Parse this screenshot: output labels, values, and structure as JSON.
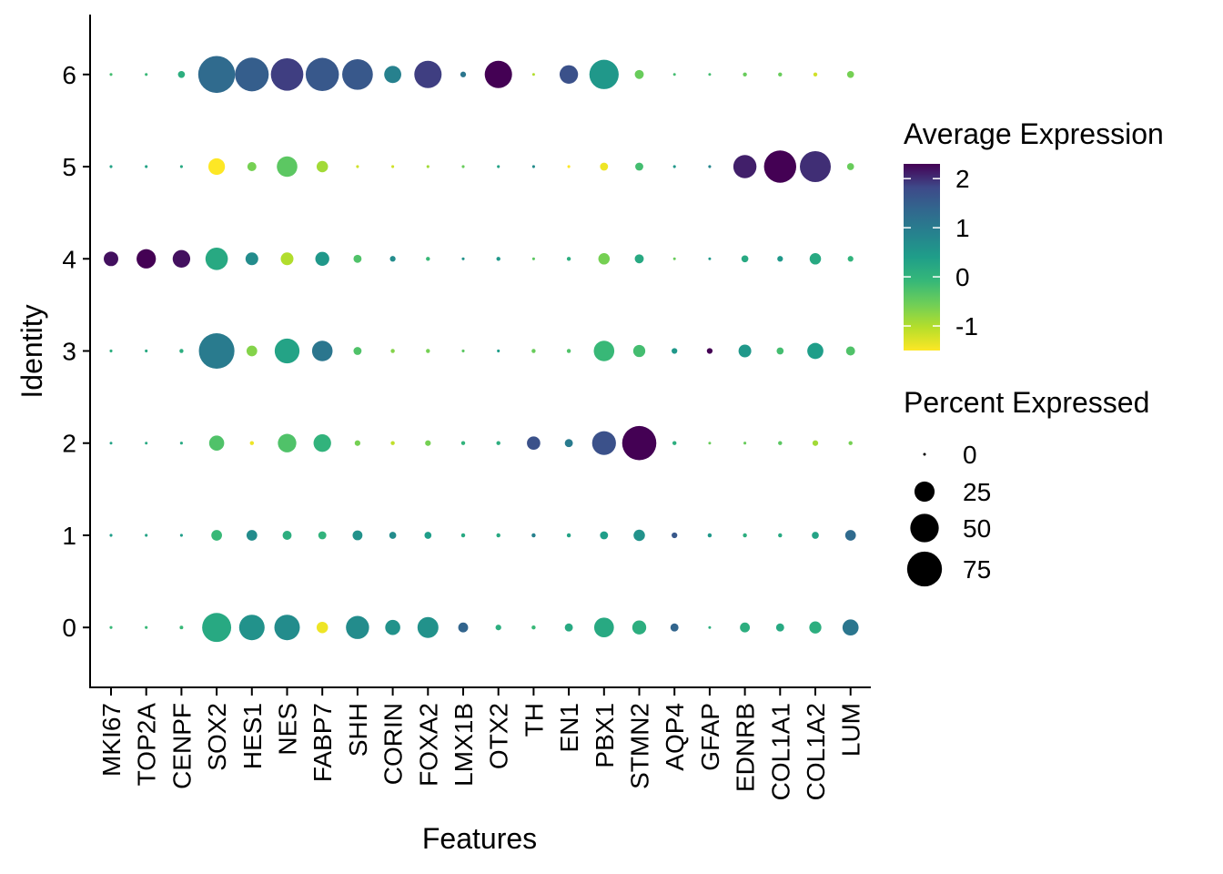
{
  "chart_data": {
    "type": "dotplot",
    "title": "",
    "xlabel": "Features",
    "ylabel": "Identity",
    "features": [
      "MKI67",
      "TOP2A",
      "CENPF",
      "SOX2",
      "HES1",
      "NES",
      "FABP7",
      "SHH",
      "CORIN",
      "FOXA2",
      "LMX1B",
      "OTX2",
      "TH",
      "EN1",
      "PBX1",
      "STMN2",
      "AQP4",
      "GFAP",
      "EDNRB",
      "COL1A1",
      "COL1A2",
      "LUM"
    ],
    "identities": [
      "0",
      "1",
      "2",
      "3",
      "4",
      "5",
      "6"
    ],
    "ylim": [
      -0.65,
      6.65
    ],
    "grid": false,
    "colorbar": {
      "title": "Average Expression",
      "range": [
        -1.5,
        2.3
      ],
      "ticks": [
        2,
        1,
        0,
        -1
      ],
      "tick_labels": [
        "2",
        "1",
        "0",
        "-1"
      ],
      "palette": "viridis (reversed: high = dark purple)"
    },
    "size_legend": {
      "title": "Percent Expressed",
      "values": [
        0,
        25,
        50,
        75
      ],
      "labels": [
        "0",
        "25",
        "50",
        "75"
      ],
      "max_value": 90
    },
    "legend_placement": "right",
    "series": [
      {
        "identity": "0",
        "avg_exp": [
          -0.1,
          -0.1,
          -0.1,
          0.2,
          0.6,
          0.7,
          -1.4,
          0.7,
          0.6,
          0.6,
          1.4,
          0.1,
          -0.1,
          0.2,
          0.2,
          0.1,
          1.4,
          0.1,
          0.1,
          0.2,
          0.1,
          1.1
        ],
        "pct_exp": [
          0.5,
          0.5,
          0.8,
          52,
          40,
          40,
          8,
          33,
          14,
          27,
          6,
          2,
          1,
          4,
          24,
          12,
          4,
          0.4,
          6,
          4,
          9,
          16
        ]
      },
      {
        "identity": "1",
        "avg_exp": [
          0.4,
          0.3,
          0.4,
          -0.1,
          0.7,
          0.1,
          0,
          0.6,
          0.7,
          0.4,
          0.2,
          0.2,
          0.9,
          0.3,
          0.4,
          0.6,
          1.6,
          0.5,
          0.1,
          0.2,
          0.3,
          1.3
        ],
        "pct_exp": [
          0.5,
          0.5,
          0.5,
          7,
          7,
          5,
          4,
          6,
          3,
          3,
          1,
          1,
          1,
          1,
          4,
          8,
          2,
          1,
          1,
          1,
          3,
          7
        ]
      },
      {
        "identity": "2",
        "avg_exp": [
          0.3,
          0.2,
          0.2,
          -0.3,
          -1.4,
          -0.3,
          0,
          -0.6,
          -1.1,
          -0.6,
          0,
          0.1,
          1.7,
          1,
          1.7,
          2.3,
          0.1,
          -0.5,
          -0.5,
          -0.4,
          -0.9,
          -0.6
        ],
        "pct_exp": [
          0.3,
          0.3,
          0.5,
          14,
          1,
          21,
          19,
          2,
          1,
          2,
          1,
          1,
          11,
          4,
          35,
          72,
          1,
          0.3,
          0.5,
          1,
          2,
          1
        ]
      },
      {
        "identity": "3",
        "avg_exp": [
          0.1,
          0.2,
          0.1,
          1,
          -0.7,
          0.3,
          1.1,
          -0.3,
          -0.7,
          -0.6,
          -0.4,
          0.4,
          -0.5,
          -0.3,
          -0.1,
          -0.2,
          0.5,
          2.3,
          0.5,
          -0.2,
          0.4,
          -0.3
        ],
        "pct_exp": [
          0.5,
          0.5,
          1,
          78,
          7,
          38,
          26,
          4,
          1,
          1,
          0.5,
          0.5,
          1,
          1,
          26,
          9,
          2,
          2,
          10,
          3,
          16,
          5
        ]
      },
      {
        "identity": "4",
        "avg_exp": [
          2.2,
          2.3,
          2.2,
          0.2,
          0.7,
          -1,
          0.5,
          -0.3,
          0.7,
          -0.1,
          0.6,
          0.5,
          -0.4,
          0.1,
          -0.6,
          0.2,
          -0.5,
          0.5,
          0.2,
          0.5,
          0.2,
          0
        ],
        "pct_exp": [
          13,
          23,
          19,
          31,
          10,
          10,
          12,
          4,
          2,
          1,
          0.5,
          1,
          0.5,
          1,
          8,
          5,
          0.3,
          0.3,
          3,
          2,
          8,
          2
        ]
      },
      {
        "identity": "5",
        "avg_exp": [
          0.3,
          0.3,
          0.2,
          -1.6,
          -0.6,
          -0.4,
          -0.9,
          -1.2,
          -1.2,
          -0.9,
          -0.5,
          0.3,
          0.7,
          -1.6,
          -1.4,
          -0.2,
          0.5,
          0.8,
          2.1,
          2.3,
          2,
          -0.5
        ],
        "pct_exp": [
          0.5,
          0.5,
          0.5,
          17,
          5,
          26,
          8,
          0.5,
          0.5,
          0.5,
          0.5,
          0.5,
          0.5,
          0.5,
          4,
          4,
          0.5,
          0.5,
          33,
          64,
          59,
          3
        ]
      },
      {
        "identity": "6",
        "avg_exp": [
          -0.2,
          -0.1,
          0.1,
          1.3,
          1.5,
          1.9,
          1.6,
          1.6,
          0.9,
          1.9,
          1.1,
          2.3,
          -1,
          1.7,
          0.5,
          -0.5,
          -0.2,
          -0.2,
          -0.5,
          -0.5,
          -1.2,
          -0.6
        ],
        "pct_exp": [
          0.5,
          0.5,
          3,
          84,
          70,
          65,
          68,
          58,
          18,
          46,
          2,
          46,
          0.3,
          21,
          53,
          5,
          0.3,
          0.3,
          1,
          1,
          1,
          3
        ]
      }
    ]
  }
}
